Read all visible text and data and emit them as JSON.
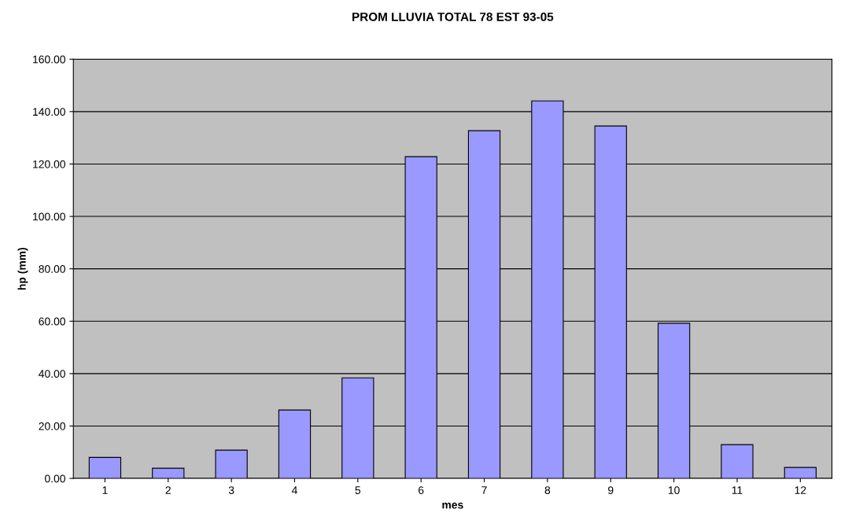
{
  "chart_data": {
    "type": "bar",
    "title": "PROM LLUVIA TOTAL 78 EST 93-05",
    "xlabel": "mes",
    "ylabel": "hp (mm)",
    "categories": [
      "1",
      "2",
      "3",
      "4",
      "5",
      "6",
      "7",
      "8",
      "9",
      "10",
      "11",
      "12"
    ],
    "series": [
      {
        "color": "#9999ff",
        "values": [
          8.0,
          3.9,
          10.8,
          26.1,
          38.4,
          122.8,
          132.7,
          144.1,
          134.5,
          59.2,
          12.9,
          4.2
        ]
      }
    ],
    "ylim": [
      0,
      160
    ],
    "yticks": [
      {
        "value": 0,
        "label": "0.00"
      },
      {
        "value": 20,
        "label": "20.00"
      },
      {
        "value": 40,
        "label": "40.00"
      },
      {
        "value": 60,
        "label": "60.00"
      },
      {
        "value": 80,
        "label": "80.00"
      },
      {
        "value": 100,
        "label": "100.00"
      },
      {
        "value": 120,
        "label": "120.00"
      },
      {
        "value": 140,
        "label": "140.00"
      },
      {
        "value": 160,
        "label": "160.00"
      }
    ],
    "grid": "y",
    "legend": false
  }
}
